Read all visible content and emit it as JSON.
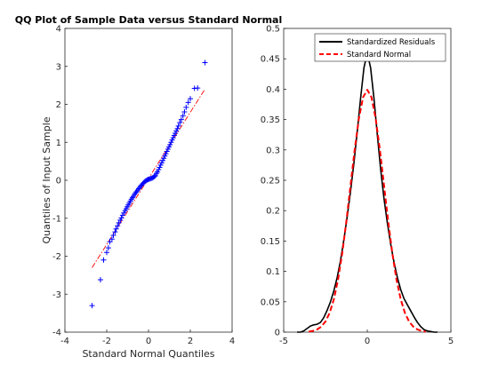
{
  "chart_data": [
    {
      "type": "scatter",
      "title": "QQ Plot of Sample Data versus Standard Normal",
      "xlabel": "Standard Normal Quantiles",
      "ylabel": "Quantiles of Input Sample",
      "xlim": [
        -4,
        4
      ],
      "ylim": [
        -4,
        4
      ],
      "xticks": [
        -4,
        -2,
        0,
        2,
        4
      ],
      "yticks": [
        -4,
        -3,
        -2,
        -1,
        0,
        1,
        2,
        3,
        4
      ],
      "grid": false,
      "marker": "+",
      "marker_color": "#0000ff",
      "reference_line": {
        "style": "dash-dot",
        "color": "#ff0000",
        "x": [
          -2.7,
          2.7
        ],
        "y": [
          -2.3,
          2.4
        ]
      },
      "points": [
        [
          -2.7,
          -3.3
        ],
        [
          -2.3,
          -2.62
        ],
        [
          -2.15,
          -2.1
        ],
        [
          -2.0,
          -1.9
        ],
        [
          -1.92,
          -1.78
        ],
        [
          -1.85,
          -1.62
        ],
        [
          -1.75,
          -1.55
        ],
        [
          -1.68,
          -1.45
        ],
        [
          -1.6,
          -1.36
        ],
        [
          -1.55,
          -1.28
        ],
        [
          -1.48,
          -1.2
        ],
        [
          -1.42,
          -1.12
        ],
        [
          -1.35,
          -1.05
        ],
        [
          -1.3,
          -0.99
        ],
        [
          -1.24,
          -0.92
        ],
        [
          -1.18,
          -0.86
        ],
        [
          -1.12,
          -0.8
        ],
        [
          -1.07,
          -0.75
        ],
        [
          -1.02,
          -0.7
        ],
        [
          -0.97,
          -0.65
        ],
        [
          -0.92,
          -0.6
        ],
        [
          -0.87,
          -0.55
        ],
        [
          -0.82,
          -0.5
        ],
        [
          -0.77,
          -0.46
        ],
        [
          -0.72,
          -0.42
        ],
        [
          -0.67,
          -0.37
        ],
        [
          -0.62,
          -0.33
        ],
        [
          -0.57,
          -0.3
        ],
        [
          -0.52,
          -0.26
        ],
        [
          -0.47,
          -0.22
        ],
        [
          -0.42,
          -0.19
        ],
        [
          -0.37,
          -0.15
        ],
        [
          -0.32,
          -0.12
        ],
        [
          -0.27,
          -0.09
        ],
        [
          -0.22,
          -0.06
        ],
        [
          -0.17,
          -0.03
        ],
        [
          -0.12,
          -0.01
        ],
        [
          -0.07,
          0.01
        ],
        [
          -0.02,
          0.02
        ],
        [
          0.03,
          0.03
        ],
        [
          0.08,
          0.04
        ],
        [
          0.13,
          0.05
        ],
        [
          0.18,
          0.06
        ],
        [
          0.23,
          0.08
        ],
        [
          0.28,
          0.1
        ],
        [
          0.33,
          0.12
        ],
        [
          0.38,
          0.18
        ],
        [
          0.43,
          0.22
        ],
        [
          0.48,
          0.28
        ],
        [
          0.53,
          0.34
        ],
        [
          0.58,
          0.4
        ],
        [
          0.63,
          0.46
        ],
        [
          0.68,
          0.52
        ],
        [
          0.73,
          0.58
        ],
        [
          0.78,
          0.64
        ],
        [
          0.83,
          0.7
        ],
        [
          0.88,
          0.76
        ],
        [
          0.93,
          0.82
        ],
        [
          0.98,
          0.88
        ],
        [
          1.03,
          0.94
        ],
        [
          1.08,
          1.0
        ],
        [
          1.13,
          1.06
        ],
        [
          1.18,
          1.12
        ],
        [
          1.23,
          1.18
        ],
        [
          1.28,
          1.24
        ],
        [
          1.33,
          1.3
        ],
        [
          1.38,
          1.36
        ],
        [
          1.43,
          1.43
        ],
        [
          1.5,
          1.52
        ],
        [
          1.57,
          1.6
        ],
        [
          1.65,
          1.7
        ],
        [
          1.72,
          1.8
        ],
        [
          1.8,
          1.92
        ],
        [
          1.9,
          2.05
        ],
        [
          2.0,
          2.15
        ],
        [
          2.2,
          2.42
        ],
        [
          2.35,
          2.43
        ],
        [
          2.7,
          3.1
        ]
      ]
    },
    {
      "type": "line",
      "title": "",
      "xlabel": "",
      "ylabel": "",
      "xlim": [
        -5,
        5
      ],
      "ylim": [
        0,
        0.5
      ],
      "xticks": [
        -5,
        0,
        5
      ],
      "yticks": [
        0,
        0.05,
        0.1,
        0.15,
        0.2,
        0.25,
        0.3,
        0.35,
        0.4,
        0.45,
        0.5
      ],
      "grid": false,
      "legend_position": "top-right",
      "series": [
        {
          "name": "Standardized Residuals",
          "color": "#000000",
          "style": "solid",
          "x": [
            -4.2,
            -4.0,
            -3.8,
            -3.6,
            -3.4,
            -3.2,
            -3.0,
            -2.8,
            -2.6,
            -2.4,
            -2.2,
            -2.0,
            -1.8,
            -1.6,
            -1.4,
            -1.2,
            -1.0,
            -0.8,
            -0.6,
            -0.4,
            -0.2,
            0.0,
            0.2,
            0.4,
            0.6,
            0.8,
            1.0,
            1.2,
            1.4,
            1.6,
            1.8,
            2.0,
            2.2,
            2.4,
            2.6,
            2.8,
            3.0,
            3.2,
            3.4,
            3.6,
            3.8,
            4.0,
            4.2
          ],
          "y": [
            0.0,
            0.0,
            0.002,
            0.006,
            0.01,
            0.012,
            0.013,
            0.016,
            0.024,
            0.036,
            0.05,
            0.068,
            0.09,
            0.118,
            0.152,
            0.19,
            0.232,
            0.278,
            0.33,
            0.385,
            0.435,
            0.46,
            0.435,
            0.385,
            0.325,
            0.268,
            0.22,
            0.18,
            0.145,
            0.115,
            0.09,
            0.07,
            0.055,
            0.045,
            0.035,
            0.025,
            0.016,
            0.009,
            0.004,
            0.002,
            0.001,
            0.0,
            0.0
          ]
        },
        {
          "name": "Standard Normal",
          "color": "#ff0000",
          "style": "dashed",
          "x": [
            -3.5,
            -3.25,
            -3.0,
            -2.75,
            -2.5,
            -2.25,
            -2.0,
            -1.75,
            -1.5,
            -1.25,
            -1.0,
            -0.75,
            -0.5,
            -0.25,
            0.0,
            0.25,
            0.5,
            0.75,
            1.0,
            1.25,
            1.5,
            1.75,
            2.0,
            2.25,
            2.5,
            2.75,
            3.0,
            3.25,
            3.5
          ],
          "y": [
            0.0009,
            0.002,
            0.0044,
            0.0091,
            0.0175,
            0.0317,
            0.054,
            0.0863,
            0.1295,
            0.1826,
            0.242,
            0.3011,
            0.3521,
            0.3867,
            0.3989,
            0.3867,
            0.3521,
            0.3011,
            0.242,
            0.1826,
            0.1295,
            0.0863,
            0.054,
            0.0317,
            0.0175,
            0.0091,
            0.0044,
            0.002,
            0.0009
          ]
        }
      ]
    }
  ]
}
